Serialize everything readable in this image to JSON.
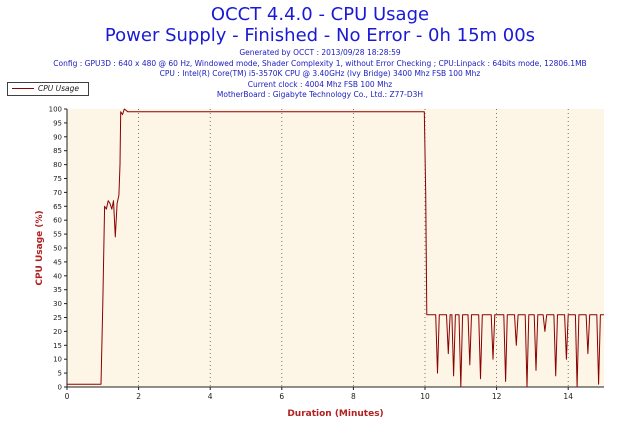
{
  "chart_data": {
    "type": "line",
    "title": "OCCT 4.4.0 - CPU Usage",
    "subtitle": "Power Supply - Finished - No Error - 0h 15m 00s",
    "info_lines": [
      "Generated by OCCT : 2013/09/28 18:28:59",
      "Config : GPU3D : 640 x 480 @ 60 Hz, Windowed mode, Shader Complexity 1, without Error Checking ; CPU:Linpack : 64bits mode, 12806.1MB",
      "CPU : Intel(R) Core(TM) i5-3570K CPU @ 3.40GHz (Ivy Bridge) 3400 Mhz FSB 100 Mhz",
      "Current clock : 4004 Mhz FSB 100 Mhz",
      "MotherBoard : Gigabyte Technology Co., Ltd.: Z77-D3H"
    ],
    "xlabel": "Duration (Minutes)",
    "ylabel": "CPU Usage (%)",
    "xlim": [
      0,
      15
    ],
    "ylim": [
      0,
      100
    ],
    "xticks": [
      0,
      2,
      4,
      6,
      8,
      10,
      12,
      14
    ],
    "yticks": [
      0,
      5,
      10,
      15,
      20,
      25,
      30,
      35,
      40,
      45,
      50,
      55,
      60,
      65,
      70,
      75,
      80,
      85,
      90,
      95,
      100
    ],
    "grid": true,
    "legend_position": "top-left",
    "colors": {
      "series": "#8b0000",
      "plot_background": "#fdf5e6",
      "title": "#1a1ad6",
      "axis_label": "#b22222"
    },
    "series": [
      {
        "name": "CPU Usage",
        "x": [
          0,
          0.25,
          0.5,
          0.75,
          0.95,
          1.0,
          1.05,
          1.1,
          1.15,
          1.2,
          1.25,
          1.3,
          1.35,
          1.4,
          1.45,
          1.48,
          1.5,
          1.55,
          1.6,
          1.7,
          2.0,
          3.0,
          4.0,
          5.0,
          6.0,
          7.0,
          8.0,
          9.0,
          9.9,
          9.98,
          10.02,
          10.05,
          10.1,
          10.3,
          10.35,
          10.4,
          10.45,
          10.6,
          10.65,
          10.7,
          10.75,
          10.8,
          10.85,
          10.95,
          11.0,
          11.05,
          11.2,
          11.25,
          11.3,
          11.35,
          11.5,
          11.55,
          11.6,
          11.65,
          11.85,
          11.9,
          11.95,
          12.0,
          12.2,
          12.25,
          12.3,
          12.35,
          12.5,
          12.55,
          12.6,
          12.65,
          12.8,
          12.85,
          12.9,
          12.95,
          13.05,
          13.1,
          13.15,
          13.2,
          13.3,
          13.35,
          13.4,
          13.45,
          13.6,
          13.65,
          13.7,
          13.75,
          13.9,
          13.95,
          14.0,
          14.05,
          14.2,
          14.25,
          14.3,
          14.35,
          14.5,
          14.55,
          14.6,
          14.65,
          14.8,
          14.85,
          14.9,
          15.0
        ],
        "values": [
          1,
          1,
          1,
          1,
          1,
          30,
          65,
          64,
          67,
          66,
          64,
          67,
          54,
          66,
          69,
          80,
          99,
          98,
          100,
          99,
          99,
          99,
          99,
          99,
          99,
          99,
          99,
          99,
          99,
          99,
          70,
          26,
          26,
          26,
          5,
          26,
          26,
          26,
          12,
          26,
          26,
          4,
          26,
          26,
          0,
          26,
          26,
          8,
          26,
          26,
          26,
          3,
          26,
          26,
          26,
          10,
          26,
          26,
          26,
          2,
          26,
          26,
          26,
          15,
          26,
          26,
          26,
          0,
          26,
          26,
          26,
          6,
          26,
          26,
          26,
          20,
          26,
          26,
          26,
          4,
          26,
          26,
          26,
          10,
          26,
          26,
          26,
          0,
          26,
          26,
          26,
          12,
          26,
          26,
          26,
          1,
          26,
          26
        ]
      }
    ]
  }
}
